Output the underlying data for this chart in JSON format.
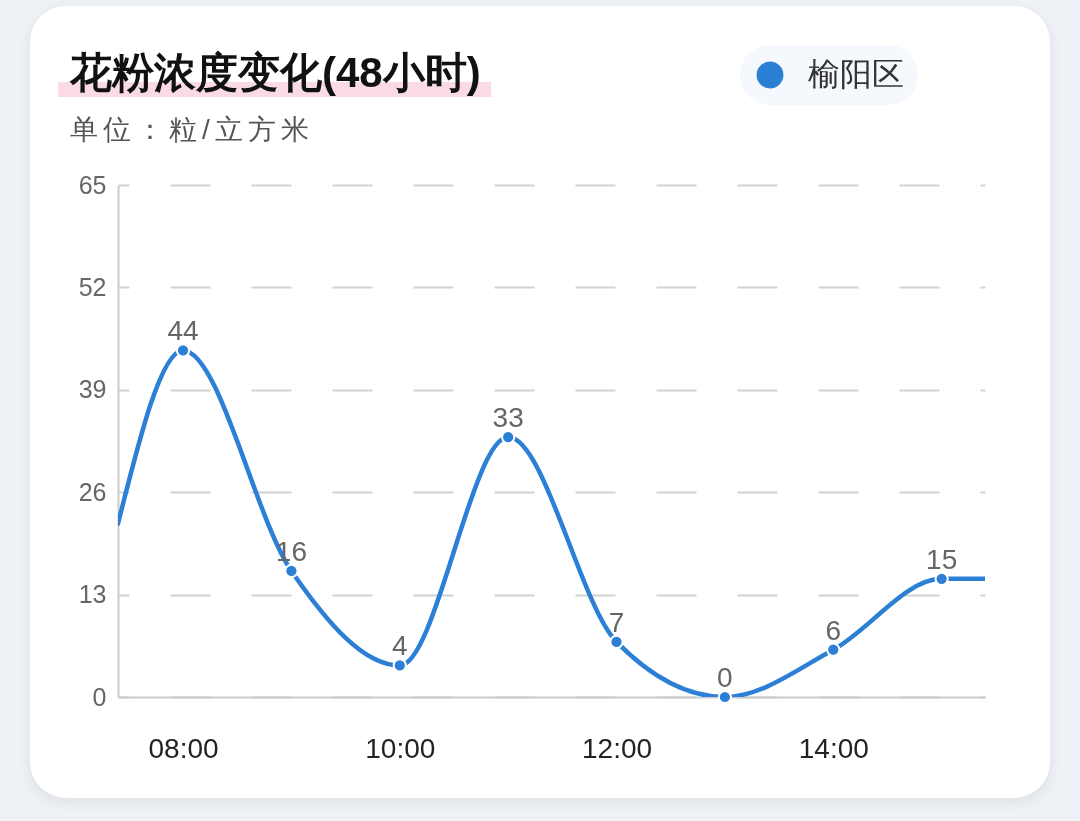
{
  "chart_data": {
    "type": "line",
    "title": "花粉浓度变化(48小时)",
    "subtitle": "单位：粒/立方米",
    "x": [
      7.4,
      8,
      9,
      10,
      11,
      12,
      13,
      14,
      15,
      15.4
    ],
    "series": [
      {
        "name": "榆阳区",
        "color": "#2b7fd4",
        "values": [
          22,
          44,
          16,
          4,
          33,
          7,
          0,
          6,
          15,
          15
        ],
        "value_labels": [
          null,
          "44",
          "16",
          "4",
          "33",
          "7",
          "0",
          "6",
          "15",
          null
        ]
      }
    ],
    "xlim": [
      7.4,
      15.4
    ],
    "xticks": [
      {
        "value": 8,
        "label": "08:00"
      },
      {
        "value": 10,
        "label": "10:00"
      },
      {
        "value": 12,
        "label": "12:00"
      },
      {
        "value": 14,
        "label": "14:00"
      }
    ],
    "ylim": [
      0,
      65
    ],
    "yticks": [
      0,
      13,
      26,
      39,
      52,
      65
    ],
    "grid": "y",
    "legend": "top right",
    "marker": "circle",
    "line_style": "solid"
  }
}
